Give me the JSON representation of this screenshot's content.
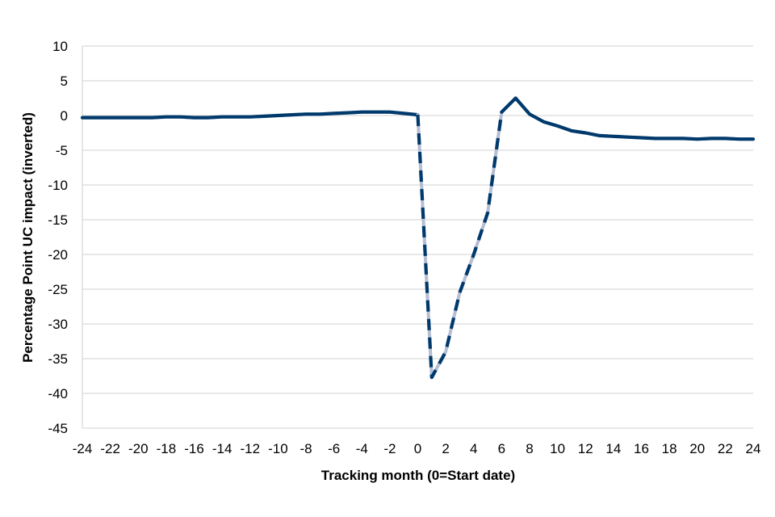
{
  "chart_data": {
    "type": "line",
    "xlabel": "Tracking month (0=Start date)",
    "ylabel": "Percentage Point UC impact (inverted)",
    "xlim": [
      -24,
      24
    ],
    "ylim": [
      -45,
      10
    ],
    "x_ticks": [
      -24,
      -22,
      -20,
      -18,
      -16,
      -14,
      -12,
      -10,
      -8,
      -6,
      -4,
      -2,
      0,
      2,
      4,
      6,
      8,
      10,
      12,
      14,
      16,
      18,
      20,
      22,
      24
    ],
    "y_ticks": [
      10,
      5,
      0,
      -5,
      -10,
      -15,
      -20,
      -25,
      -30,
      -35,
      -40,
      -45
    ],
    "grid": true,
    "legend": "none",
    "colors": {
      "main": "#003a6c",
      "shadow": "#b4bdd2"
    },
    "series": [
      {
        "style": "solid",
        "x": [
          -24,
          -23,
          -22,
          -21,
          -20,
          -19,
          -18,
          -17,
          -16,
          -15,
          -14,
          -13,
          -12,
          -11,
          -10,
          -9,
          -8,
          -7,
          -6,
          -5,
          -4,
          -3,
          -2,
          -1,
          0
        ],
        "y": [
          -0.3,
          -0.3,
          -0.3,
          -0.3,
          -0.3,
          -0.3,
          -0.2,
          -0.2,
          -0.3,
          -0.3,
          -0.2,
          -0.2,
          -0.2,
          -0.1,
          0.0,
          0.1,
          0.2,
          0.2,
          0.3,
          0.4,
          0.5,
          0.5,
          0.5,
          0.3,
          0.1
        ]
      },
      {
        "style": "dashed",
        "x": [
          0,
          1,
          2,
          3,
          4,
          5,
          6
        ],
        "y": [
          0.1,
          -37.7,
          -34.0,
          -25.5,
          -20.0,
          -14.0,
          0.5
        ]
      },
      {
        "style": "solid",
        "x": [
          6,
          7,
          8,
          9,
          10,
          11,
          12,
          13,
          14,
          15,
          16,
          17,
          18,
          19,
          20,
          21,
          22,
          23,
          24
        ],
        "y": [
          0.5,
          2.5,
          0.2,
          -0.9,
          -1.5,
          -2.2,
          -2.5,
          -2.9,
          -3.0,
          -3.1,
          -3.2,
          -3.3,
          -3.3,
          -3.3,
          -3.4,
          -3.3,
          -3.3,
          -3.4,
          -3.4
        ]
      }
    ]
  }
}
